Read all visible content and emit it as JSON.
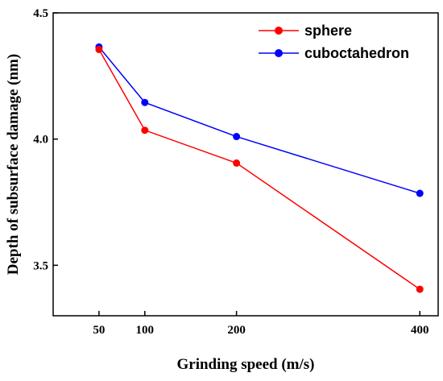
{
  "chart_data": {
    "type": "line",
    "title": "",
    "xlabel": "Grinding speed (m/s)",
    "ylabel": "Depth of subsurface damage (nm)",
    "x": [
      50,
      100,
      200,
      400
    ],
    "xlim": [
      0,
      420
    ],
    "xticks": [
      50,
      100,
      200,
      400
    ],
    "ylim": [
      3.3,
      4.5
    ],
    "yticks": [
      3.5,
      4.0,
      4.5
    ],
    "ytick_labels": [
      "3.5",
      "4.0",
      "4.5"
    ],
    "grid": false,
    "legend_position": "top-right",
    "series": [
      {
        "name": "sphere",
        "color": "#ff0000",
        "values": [
          4.355,
          4.035,
          3.905,
          3.405
        ]
      },
      {
        "name": "cuboctahedron",
        "color": "#0000ff",
        "values": [
          4.365,
          4.145,
          4.01,
          3.785
        ]
      }
    ]
  }
}
